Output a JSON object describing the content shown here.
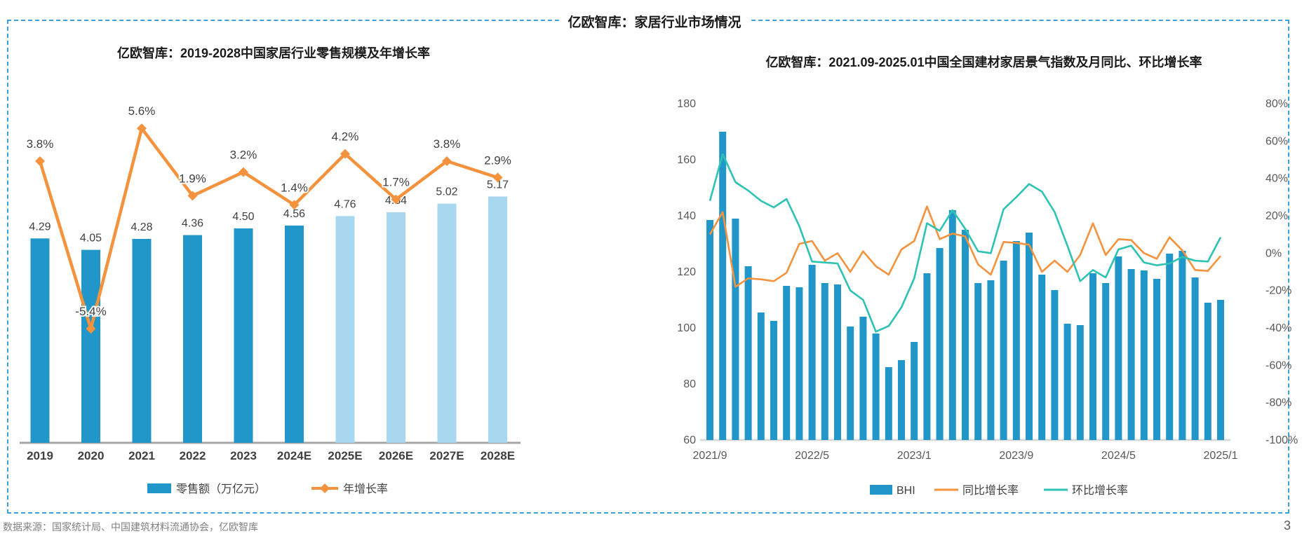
{
  "page": {
    "header_title": "亿欧智库：家居行业市场情况",
    "source_note": "数据来源：国家统计局、中国建筑材料流通协会，亿欧智库",
    "page_number": "3"
  },
  "colors": {
    "bar_dark_blue": "#2196C8",
    "bar_light_blue": "#A8D8EF",
    "orange": "#F5923E",
    "teal": "#2DC3B4",
    "border_blue": "#3BA0DB",
    "axis_line_dark": "#A6A6A6",
    "axis_line_light": "#D9D9D9",
    "tick_text": "#595959",
    "label_text": "#404040",
    "title_text": "#1A1A1A"
  },
  "chart_data": [
    {
      "type": "bar+line",
      "title": "亿欧智库：2019-2028中国家居行业零售规模及年增长率",
      "categories": [
        "2019",
        "2020",
        "2021",
        "2022",
        "2023",
        "2024E",
        "2025E",
        "2026E",
        "2027E",
        "2028E"
      ],
      "series": [
        {
          "name": "零售额（万亿元）",
          "type": "bar",
          "values": [
            4.29,
            4.05,
            4.28,
            4.36,
            4.5,
            4.56,
            4.76,
            4.84,
            5.02,
            5.17
          ],
          "labels": [
            "4.29",
            "4.05",
            "4.28",
            "4.36",
            "4.50",
            "4.56",
            "4.76",
            "4.84",
            "5.02",
            "5.17"
          ],
          "dark_bar_count": 6
        },
        {
          "name": "年增长率",
          "type": "line",
          "values": [
            3.8,
            -5.4,
            5.6,
            1.9,
            3.2,
            1.4,
            4.2,
            1.7,
            3.8,
            2.9
          ],
          "labels": [
            "3.8%",
            "-5.4%",
            "5.6%",
            "1.9%",
            "3.2%",
            "1.4%",
            "4.2%",
            "1.7%",
            "3.8%",
            "2.9%"
          ]
        }
      ],
      "legend": [
        "零售额（万亿元）",
        "年增长率"
      ],
      "grid": false
    },
    {
      "type": "bar+line",
      "title": "亿欧智库：2021.09-2025.01中国全国建材家居景气指数及月同比、环比增长率",
      "x_tick_labels": [
        "2021/9",
        "2022/5",
        "2023/1",
        "2023/9",
        "2024/5",
        "2025/1"
      ],
      "x_tick_indices": [
        0,
        8,
        16,
        24,
        32,
        40
      ],
      "left_axis": {
        "min": 60,
        "max": 180,
        "tick_labels": [
          "180",
          "160",
          "140",
          "120",
          "100",
          "80",
          "60"
        ]
      },
      "right_axis": {
        "min": -100,
        "max": 80,
        "tick_labels": [
          "80%",
          "60%",
          "40%",
          "20%",
          "0%",
          "-20%",
          "-40%",
          "-60%",
          "-80%",
          "-100%"
        ]
      },
      "series": [
        {
          "name": "BHI",
          "type": "bar",
          "axis": "left",
          "values": [
            138.5,
            170,
            139,
            122,
            105.5,
            102.5,
            115,
            114.5,
            122.5,
            116,
            115.5,
            100.5,
            104,
            98,
            86,
            88.5,
            95,
            119.5,
            128.5,
            142,
            135,
            116,
            117,
            124,
            131,
            134,
            119,
            113.5,
            101.5,
            101,
            119.5,
            116,
            125.5,
            121,
            120.5,
            117.5,
            126.5,
            127.5,
            118,
            109,
            110
          ]
        },
        {
          "name": "同比增长率",
          "type": "line",
          "axis": "right",
          "values": [
            10,
            22,
            -18,
            -13.5,
            -14,
            -15,
            -10.5,
            5,
            6.5,
            -4,
            0,
            -10,
            1,
            -7,
            -11.5,
            2,
            6.5,
            25,
            7.5,
            10.5,
            9,
            -6,
            -11.5,
            6,
            5.5,
            4.5,
            -10,
            -4,
            -10,
            -1,
            16,
            -1,
            7.5,
            7,
            0,
            -3,
            8.5,
            1.5,
            -9,
            -9.5,
            -1.5
          ]
        },
        {
          "name": "环比增长率",
          "type": "line",
          "axis": "right",
          "values": [
            28,
            53,
            38,
            33.5,
            28,
            24.5,
            29,
            14.5,
            -4.5,
            -5,
            -5.5,
            -20,
            -25,
            -42,
            -39,
            -29,
            -13.5,
            16,
            12,
            23,
            13,
            1,
            0,
            23.5,
            30,
            37,
            33,
            22,
            4,
            -15,
            -9,
            -13,
            2,
            4,
            -5,
            -6.5,
            -5.5,
            -2,
            -4,
            -4.5,
            8.5
          ]
        }
      ],
      "legend": [
        "BHI",
        "同比增长率",
        "环比增长率"
      ],
      "grid": false
    }
  ]
}
